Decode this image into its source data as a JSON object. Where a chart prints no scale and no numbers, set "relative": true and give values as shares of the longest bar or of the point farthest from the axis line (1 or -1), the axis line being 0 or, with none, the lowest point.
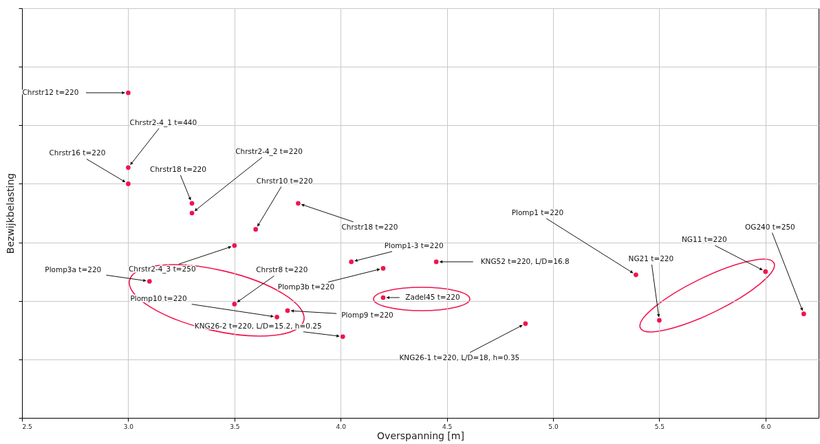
{
  "chart_data": {
    "type": "scatter",
    "xlabel": "Overspanning [m]",
    "ylabel": "Bezwijkbelasting",
    "relative": true,
    "xlim": [
      2.5,
      6.25
    ],
    "xticks": [
      2.5,
      {
        "value": 3,
        "label": "3.0"
      },
      3.5,
      {
        "value": 4,
        "label": "4.0"
      },
      4.5,
      {
        "value": 5,
        "label": "5.0"
      },
      5.5,
      {
        "value": 6,
        "label": "6.0"
      }
    ],
    "grid": true,
    "marker": "circle",
    "x": [
      3.0,
      3.0,
      3.0,
      3.3,
      3.3,
      3.6,
      3.8,
      3.5,
      3.1,
      3.5,
      3.7,
      3.75,
      4.01,
      4.05,
      4.2,
      4.2,
      4.45,
      4.87,
      5.39,
      5.5,
      6.0,
      6.18
    ],
    "series": [
      {
        "color": "#f0144c",
        "values": [
          1.0,
          0.77,
          0.72,
          0.66,
          0.63,
          0.58,
          0.66,
          0.53,
          0.42,
          0.35,
          0.31,
          0.33,
          0.25,
          0.48,
          0.46,
          0.37,
          0.48,
          0.29,
          0.44,
          0.3,
          0.45,
          0.32
        ]
      }
    ],
    "annotations": [
      {
        "text": "Chrstr12 t=220",
        "x": 3.0,
        "y": 1.0
      },
      {
        "text": "Chrstr2-4_1 t=440",
        "x": 3.0,
        "y": 0.77
      },
      {
        "text": "Chrstr16 t=220",
        "x": 3.0,
        "y": 0.72
      },
      {
        "text": "Chrstr18 t=220",
        "x": 3.3,
        "y": 0.66
      },
      {
        "text": "Chrstr2-4_2 t=220",
        "x": 3.3,
        "y": 0.63
      },
      {
        "text": "Chrstr10 t=220",
        "x": 3.6,
        "y": 0.58
      },
      {
        "text": "Chrstr18 t=220",
        "x": 3.8,
        "y": 0.66
      },
      {
        "text": "Chrstr2-4_3 t=250",
        "x": 3.5,
        "y": 0.53
      },
      {
        "text": "Plomp3a t=220",
        "x": 3.1,
        "y": 0.42
      },
      {
        "text": "Chrstr8 t=220",
        "x": 3.5,
        "y": 0.35
      },
      {
        "text": "Plomp10 t=220",
        "x": 3.7,
        "y": 0.31
      },
      {
        "text": "Plomp9 t=220",
        "x": 3.75,
        "y": 0.33
      },
      {
        "text": "KNG26-2 t=220, L/D=15.2, h=0.25",
        "x": 4.01,
        "y": 0.25
      },
      {
        "text": "Plomp1-3 t=220",
        "x": 4.05,
        "y": 0.48
      },
      {
        "text": "Plomp3b t=220",
        "x": 4.2,
        "y": 0.46
      },
      {
        "text": "Zadel45 t=220",
        "x": 4.2,
        "y": 0.37
      },
      {
        "text": "KNG52 t=220, L/D=16.8",
        "x": 4.45,
        "y": 0.48
      },
      {
        "text": "KNG26-1 t=220, L/D=18, h=0.35",
        "x": 4.87,
        "y": 0.29
      },
      {
        "text": "Plomp1 t=220",
        "x": 5.39,
        "y": 0.44
      },
      {
        "text": "NG21 t=220",
        "x": 5.5,
        "y": 0.3
      },
      {
        "text": "NG11 t=220",
        "x": 6.0,
        "y": 0.45
      },
      {
        "text": "OG240 t=250",
        "x": 6.18,
        "y": 0.32
      }
    ]
  }
}
